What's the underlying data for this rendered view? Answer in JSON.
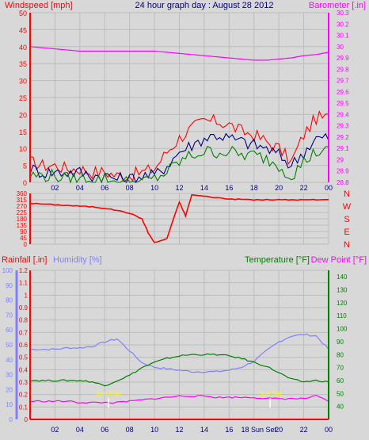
{
  "chart_data": [
    {
      "type": "line",
      "title": "24 hour graph day : August 28 2012",
      "left_axis_label": "Windspeed [mph]",
      "right_axis_label": "Barometer [.in]",
      "x_ticks": [
        "02",
        "04",
        "06",
        "08",
        "10",
        "12",
        "14",
        "16",
        "18",
        "20",
        "22",
        "00"
      ],
      "left_ticks": [
        "0",
        "5",
        "10",
        "15",
        "20",
        "25",
        "30",
        "35",
        "40",
        "45",
        "50"
      ],
      "right_ticks": [
        "28.8",
        "28.9",
        "29",
        "29.1",
        "29.2",
        "29.3",
        "29.4",
        "29.5",
        "29.6",
        "29.7",
        "29.8",
        "29.9",
        "30",
        "30.1",
        "30.2",
        "30.3"
      ],
      "left_ylim": [
        0,
        50
      ],
      "right_ylim": [
        28.8,
        30.3
      ],
      "x": [
        0,
        1,
        2,
        3,
        4,
        5,
        6,
        7,
        8,
        9,
        10,
        11,
        12,
        13,
        14,
        15,
        16,
        17,
        18,
        19,
        20,
        21,
        22,
        23,
        24
      ],
      "series": [
        {
          "values": [
            6,
            5,
            5,
            4,
            4,
            3,
            3,
            2,
            2,
            3,
            4,
            9,
            13,
            16,
            18,
            18,
            17,
            15,
            14,
            12,
            10,
            6,
            14,
            19,
            19
          ],
          "color": "#ff0000"
        },
        {
          "values": [
            4,
            3,
            3,
            3,
            3,
            2,
            2,
            1,
            1,
            2,
            2,
            5,
            9,
            11,
            13,
            14,
            13,
            12,
            11,
            10,
            8,
            5,
            9,
            13,
            13
          ],
          "color": "#000080"
        },
        {
          "values": [
            2,
            2,
            2,
            1,
            1,
            1,
            1,
            0,
            0,
            0,
            1,
            3,
            6,
            8,
            9,
            9,
            9,
            8,
            8,
            7,
            5,
            2,
            6,
            9,
            9
          ],
          "color": "#008000"
        },
        {
          "values": [
            30,
            29.99,
            29.98,
            29.97,
            29.96,
            29.96,
            29.96,
            29.96,
            29.96,
            29.96,
            29.96,
            29.95,
            29.94,
            29.93,
            29.92,
            29.91,
            29.9,
            29.89,
            29.88,
            29.88,
            29.89,
            29.9,
            29.92,
            29.93,
            29.95
          ],
          "color": "#ff00ff"
        }
      ]
    },
    {
      "type": "line",
      "right_labels": [
        "N",
        "W",
        "S",
        "E",
        "N"
      ],
      "left_ticks": [
        "0",
        "45",
        "90",
        "135",
        "180",
        "225",
        "270",
        "315",
        "360"
      ],
      "ylim": [
        0,
        360
      ],
      "x": [
        0,
        1,
        2,
        3,
        4,
        5,
        6,
        7,
        8,
        9,
        9.5,
        10,
        11,
        12,
        12.5,
        13,
        14,
        15,
        16,
        17,
        18,
        19,
        20,
        21,
        22,
        23,
        24
      ],
      "series": [
        {
          "values": [
            290,
            285,
            280,
            275,
            270,
            265,
            255,
            240,
            220,
            180,
            80,
            10,
            40,
            300,
            200,
            350,
            340,
            330,
            320,
            318,
            315,
            315,
            315,
            315,
            315,
            315,
            315
          ],
          "color": "#ff0000"
        }
      ]
    },
    {
      "type": "line",
      "left_axis_label": "Rainfall [.in]",
      "left_axis_label_2": "Humidity [%]",
      "right_axis_label": "Temperature [°F]",
      "right_axis_label_2": "Dew Point [°F]",
      "humidity_ticks": [
        "0",
        "10",
        "20",
        "30",
        "40",
        "50",
        "60",
        "70",
        "80",
        "90",
        "100"
      ],
      "rain_ticks": [
        "0",
        "0.1",
        "0.2",
        "0.3",
        "0.4",
        "0.5",
        "0.6",
        "0.7",
        "0.8",
        "0.9",
        "1",
        "1.1",
        "1.2"
      ],
      "temp_ticks": [
        "40",
        "50",
        "60",
        "70",
        "80",
        "90",
        "100",
        "110",
        "120",
        "130",
        "140"
      ],
      "humidity_ylim": [
        0,
        100
      ],
      "rain_ylim": [
        0,
        1.2
      ],
      "temp_ylim": [
        30,
        145
      ],
      "annotations": [
        "Sun Rise",
        "Sun Set"
      ],
      "x_ticks": [
        "02",
        "04",
        "06",
        "08",
        "10",
        "12",
        "14",
        "16",
        "18",
        "20",
        "22",
        "00"
      ],
      "sunset_label": "18 Sun Set",
      "x": [
        0,
        1,
        2,
        3,
        4,
        5,
        6,
        7,
        8,
        9,
        10,
        11,
        12,
        13,
        14,
        15,
        16,
        17,
        18,
        19,
        20,
        21,
        22,
        23,
        24
      ],
      "series": [
        {
          "values": [
            47,
            47,
            47,
            48,
            48,
            49,
            52,
            54,
            46,
            38,
            35,
            34,
            33,
            32,
            32,
            32,
            33,
            35,
            39,
            46,
            52,
            56,
            57,
            56,
            47
          ],
          "color": "#8080ff"
        },
        {
          "values": [
            60,
            60,
            60,
            60,
            60,
            59,
            56,
            60,
            64,
            70,
            74,
            77,
            79,
            80,
            80,
            80,
            79,
            77,
            74,
            71,
            66,
            61,
            59,
            60,
            59
          ],
          "color": "#008000"
        },
        {
          "values": [
            44,
            44,
            44,
            44,
            43,
            43,
            43,
            43,
            44,
            45,
            46,
            47,
            48,
            48,
            48,
            47,
            47,
            47,
            47,
            46,
            46,
            46,
            46,
            48,
            44
          ],
          "color": "#ff00ff"
        },
        {
          "values": [
            0,
            0,
            0,
            0,
            0,
            0,
            0,
            0,
            0,
            0,
            0,
            0,
            0,
            0,
            0,
            0,
            0,
            0,
            0,
            0,
            0,
            0,
            0,
            0,
            0
          ],
          "color": "#ff0000"
        }
      ]
    }
  ]
}
